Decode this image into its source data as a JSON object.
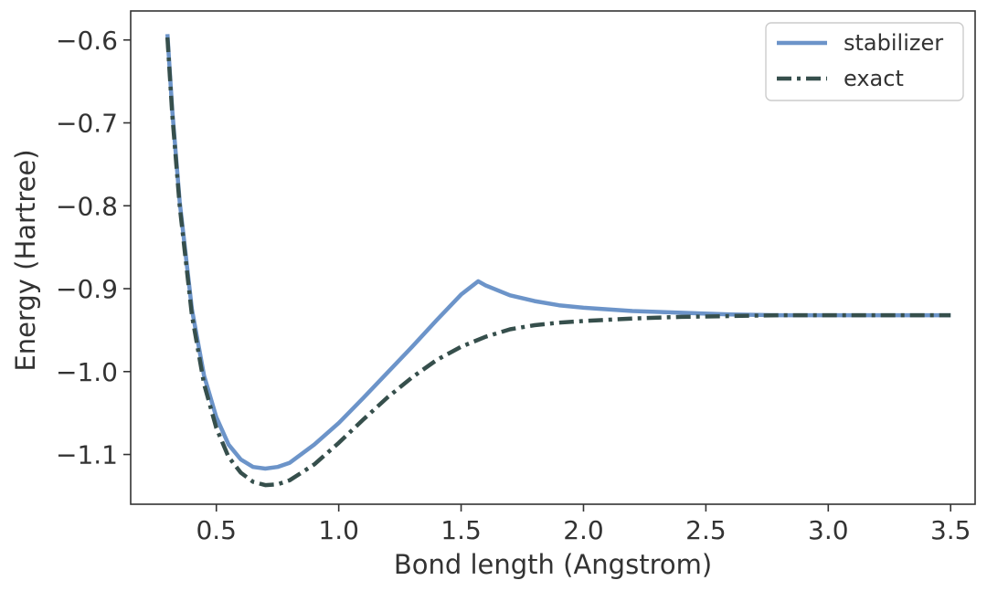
{
  "chart_data": {
    "type": "line",
    "title": "",
    "xlabel": "Bond length (Angstrom)",
    "ylabel": "Energy (Hartree)",
    "xlim": [
      0.15,
      3.6
    ],
    "ylim": [
      -1.16,
      -0.565
    ],
    "xticks": [
      0.5,
      1.0,
      1.5,
      2.0,
      2.5,
      3.0,
      3.5
    ],
    "xtick_labels": [
      "0.5",
      "1.0",
      "1.5",
      "2.0",
      "2.5",
      "3.0",
      "3.5"
    ],
    "yticks": [
      -0.6,
      -0.7,
      -0.8,
      -0.9,
      -1.0,
      -1.1
    ],
    "ytick_labels": [
      "−0.6",
      "−0.7",
      "−0.8",
      "−0.9",
      "−1.0",
      "−1.1"
    ],
    "grid": false,
    "legend_position": "top-right",
    "series": [
      {
        "name": "stabilizer",
        "color": "#6c94c9",
        "style": "solid",
        "x": [
          0.3,
          0.32,
          0.35,
          0.4,
          0.45,
          0.5,
          0.55,
          0.6,
          0.65,
          0.7,
          0.75,
          0.8,
          0.9,
          1.0,
          1.1,
          1.2,
          1.3,
          1.4,
          1.5,
          1.57,
          1.6,
          1.7,
          1.8,
          1.9,
          2.0,
          2.2,
          2.4,
          2.6,
          2.8,
          3.0,
          3.2,
          3.5
        ],
        "y": [
          -0.593,
          -0.685,
          -0.795,
          -0.925,
          -1.005,
          -1.055,
          -1.088,
          -1.106,
          -1.115,
          -1.117,
          -1.115,
          -1.11,
          -1.088,
          -1.062,
          -1.032,
          -1.001,
          -0.97,
          -0.938,
          -0.907,
          -0.891,
          -0.896,
          -0.908,
          -0.915,
          -0.92,
          -0.923,
          -0.927,
          -0.929,
          -0.931,
          -0.932,
          -0.932,
          -0.932,
          -0.932
        ]
      },
      {
        "name": "exact",
        "color": "#364f4c",
        "style": "dashdot",
        "x": [
          0.3,
          0.32,
          0.35,
          0.4,
          0.45,
          0.5,
          0.55,
          0.6,
          0.65,
          0.7,
          0.75,
          0.8,
          0.9,
          1.0,
          1.1,
          1.2,
          1.3,
          1.4,
          1.5,
          1.6,
          1.7,
          1.8,
          1.9,
          2.0,
          2.2,
          2.4,
          2.6,
          2.8,
          3.0,
          3.2,
          3.5
        ],
        "y": [
          -0.597,
          -0.69,
          -0.8,
          -0.932,
          -1.015,
          -1.068,
          -1.103,
          -1.122,
          -1.133,
          -1.137,
          -1.136,
          -1.131,
          -1.112,
          -1.086,
          -1.058,
          -1.031,
          -1.007,
          -0.986,
          -0.97,
          -0.958,
          -0.949,
          -0.944,
          -0.941,
          -0.939,
          -0.936,
          -0.934,
          -0.933,
          -0.932,
          -0.932,
          -0.932,
          -0.932
        ]
      }
    ]
  }
}
